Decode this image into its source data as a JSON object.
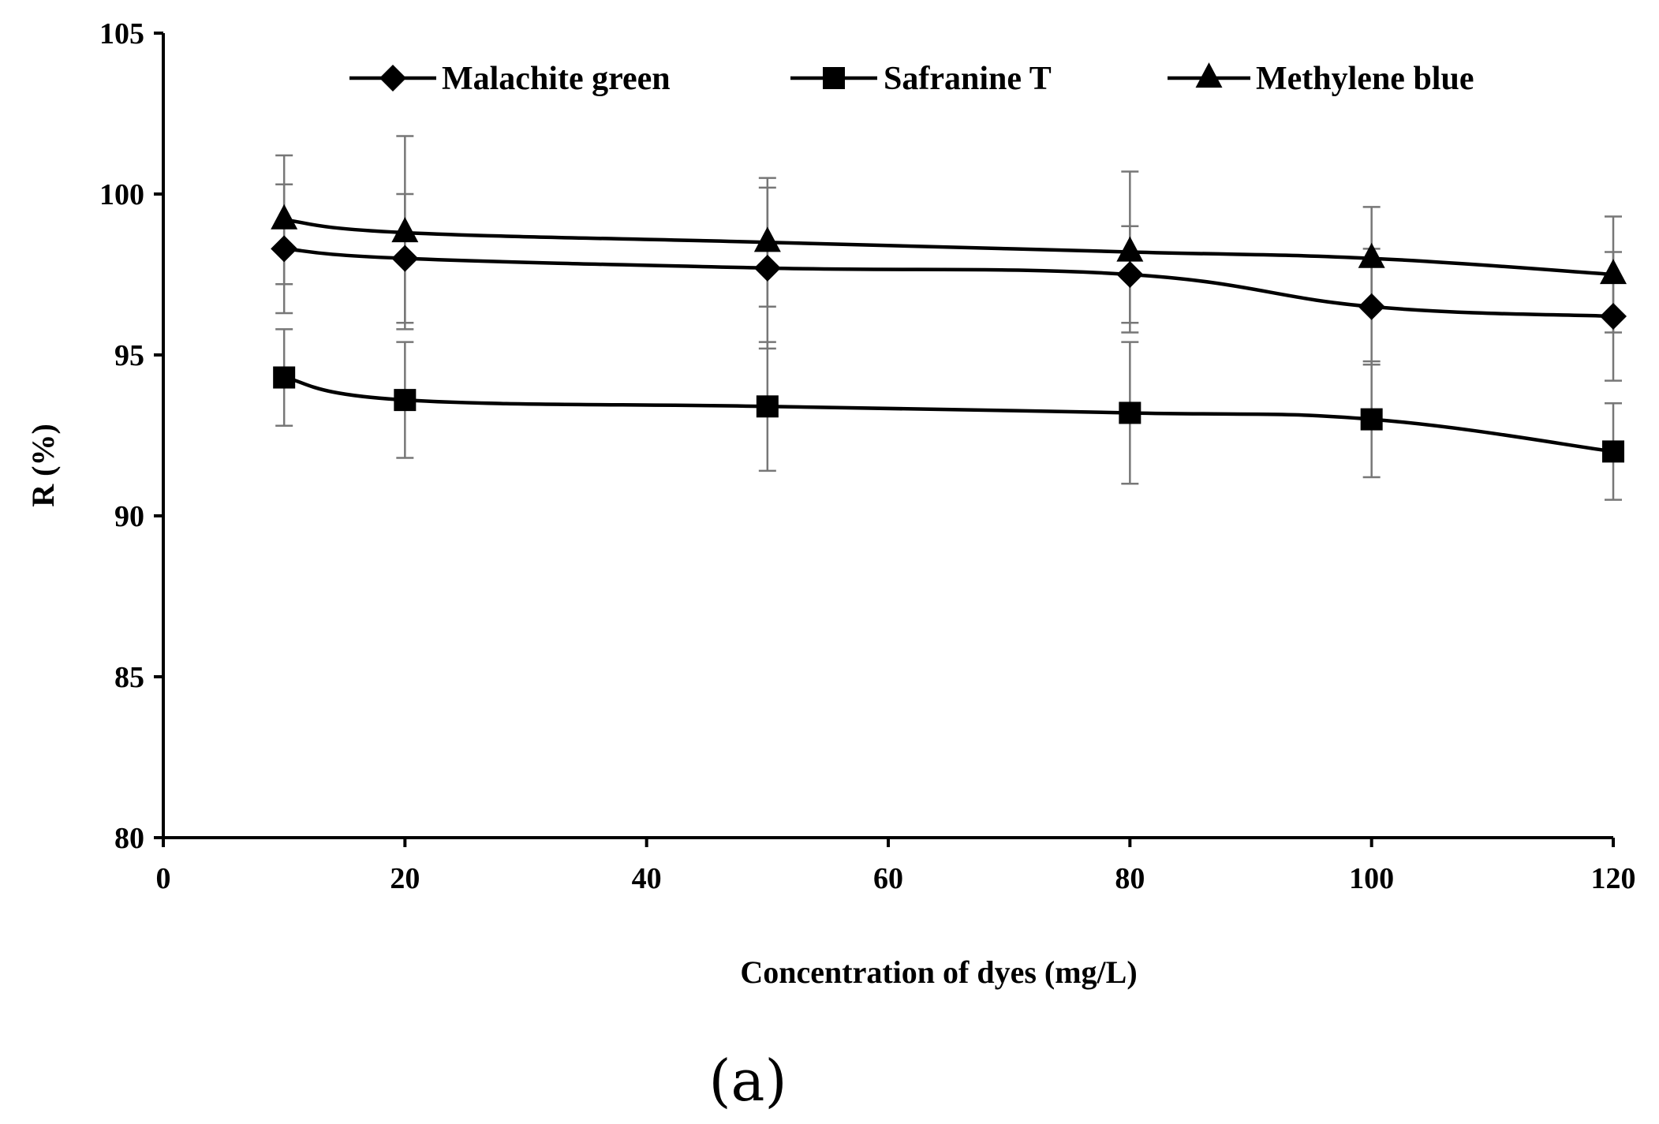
{
  "chart_data": {
    "type": "line",
    "title": "",
    "xlabel": "Concentration of dyes (mg/L)",
    "ylabel": "R (%)",
    "xlim": [
      0,
      120
    ],
    "ylim": [
      80,
      105
    ],
    "x_ticks": [
      0,
      20,
      40,
      60,
      80,
      100,
      120
    ],
    "y_ticks": [
      80,
      85,
      90,
      95,
      100,
      105
    ],
    "grid": false,
    "legend_position": "top",
    "series": [
      {
        "name": "Malachite green",
        "marker": "diamond",
        "x": [
          10,
          20,
          50,
          80,
          100,
          120
        ],
        "y": [
          98.3,
          98.0,
          97.7,
          97.5,
          96.5,
          96.2
        ],
        "error": [
          2.0,
          2.0,
          2.5,
          1.5,
          1.8,
          2.0
        ]
      },
      {
        "name": "Safranine T",
        "marker": "square",
        "x": [
          10,
          20,
          50,
          80,
          100,
          120
        ],
        "y": [
          94.3,
          93.6,
          93.4,
          93.2,
          93.0,
          92.0
        ],
        "error": [
          1.5,
          1.8,
          2.0,
          2.2,
          1.8,
          1.5
        ]
      },
      {
        "name": "Methylene blue",
        "marker": "triangle",
        "x": [
          10,
          20,
          50,
          80,
          100,
          120
        ],
        "y": [
          99.2,
          98.8,
          98.5,
          98.2,
          98.0,
          97.5
        ],
        "error": [
          2.0,
          3.0,
          2.0,
          2.5,
          1.6,
          1.8
        ]
      }
    ]
  },
  "panel_label": "(a)",
  "colors": {
    "line": "#000000",
    "error_bar": "#777777"
  }
}
